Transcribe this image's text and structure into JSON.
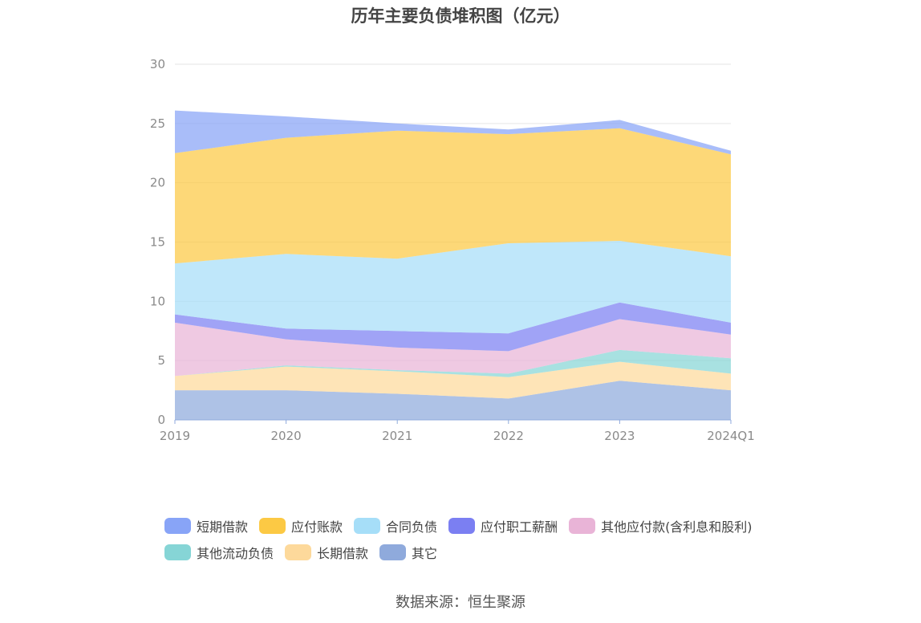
{
  "chart_data": {
    "type": "area",
    "stacked": true,
    "title": "历年主要负债堆积图（亿元）",
    "categories": [
      "2019",
      "2020",
      "2021",
      "2022",
      "2023",
      "2024Q1"
    ],
    "ylim": [
      0,
      30
    ],
    "yticks": [
      "0",
      "5",
      "10",
      "15",
      "20",
      "25",
      "30"
    ],
    "grid": true,
    "legend_position": "bottom",
    "series": [
      {
        "name": "其它",
        "color": "#8faadc",
        "values": [
          2.5,
          2.5,
          2.2,
          1.8,
          3.3,
          2.5
        ]
      },
      {
        "name": "长期借款",
        "color": "#fdd99b",
        "values": [
          1.2,
          2.0,
          1.9,
          1.8,
          1.6,
          1.4
        ]
      },
      {
        "name": "其他流动负债",
        "color": "#86d5d6",
        "values": [
          0.0,
          0.1,
          0.1,
          0.3,
          1.0,
          1.3
        ]
      },
      {
        "name": "其他应付款(含利息和股利)",
        "color": "#e9b4d7",
        "values": [
          4.5,
          2.2,
          1.9,
          1.9,
          2.6,
          2.0
        ]
      },
      {
        "name": "应付职工薪酬",
        "color": "#7b7ff2",
        "values": [
          0.7,
          0.9,
          1.4,
          1.5,
          1.4,
          1.0
        ]
      },
      {
        "name": "合同负债",
        "color": "#a6def8",
        "values": [
          4.3,
          6.3,
          6.1,
          7.6,
          5.2,
          5.6
        ]
      },
      {
        "name": "应付账款",
        "color": "#fcc944",
        "values": [
          9.3,
          9.8,
          10.8,
          9.2,
          9.5,
          8.6
        ]
      },
      {
        "name": "短期借款",
        "color": "#88a4f7",
        "values": [
          3.6,
          1.8,
          0.6,
          0.4,
          0.7,
          0.3
        ]
      }
    ]
  },
  "legend": {
    "rows": [
      [
        {
          "label": "短期借款",
          "color": "#88a4f7"
        },
        {
          "label": "应付账款",
          "color": "#fcc944"
        },
        {
          "label": "合同负债",
          "color": "#a6def8"
        },
        {
          "label": "应付职工薪酬",
          "color": "#7b7ff2"
        },
        {
          "label": "其他应付款(含利息和股利)",
          "color": "#e9b4d7"
        }
      ],
      [
        {
          "label": "其他流动负债",
          "color": "#86d5d6"
        },
        {
          "label": "长期借款",
          "color": "#fdd99b"
        },
        {
          "label": "其它",
          "color": "#8faadc"
        }
      ]
    ]
  },
  "source": "数据来源：恒生聚源"
}
